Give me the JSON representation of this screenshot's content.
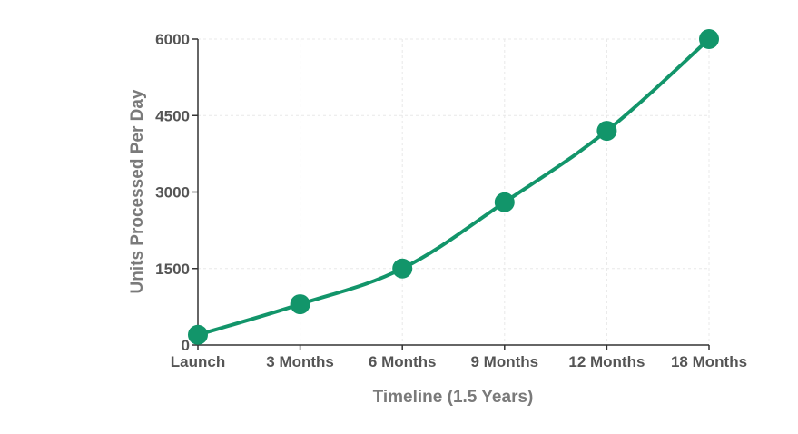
{
  "chart_data": {
    "type": "line",
    "title": "",
    "xlabel": "Timeline (1.5 Years)",
    "ylabel": "Units Processed Per Day",
    "categories": [
      "Launch",
      "3 Months",
      "6 Months",
      "9 Months",
      "12 Months",
      "18 Months"
    ],
    "series": [
      {
        "values": [
          200,
          800,
          1500,
          2800,
          4200,
          6000
        ]
      }
    ],
    "yticks": [
      0,
      1500,
      3000,
      4500,
      6000
    ],
    "ylim": [
      0,
      6000
    ],
    "grid": true,
    "legend": "none",
    "colors": {
      "line": "#12956a",
      "axis": "#333333",
      "grid": "#e8e8e8",
      "text": "#555555",
      "title": "#7a7a7a"
    }
  }
}
